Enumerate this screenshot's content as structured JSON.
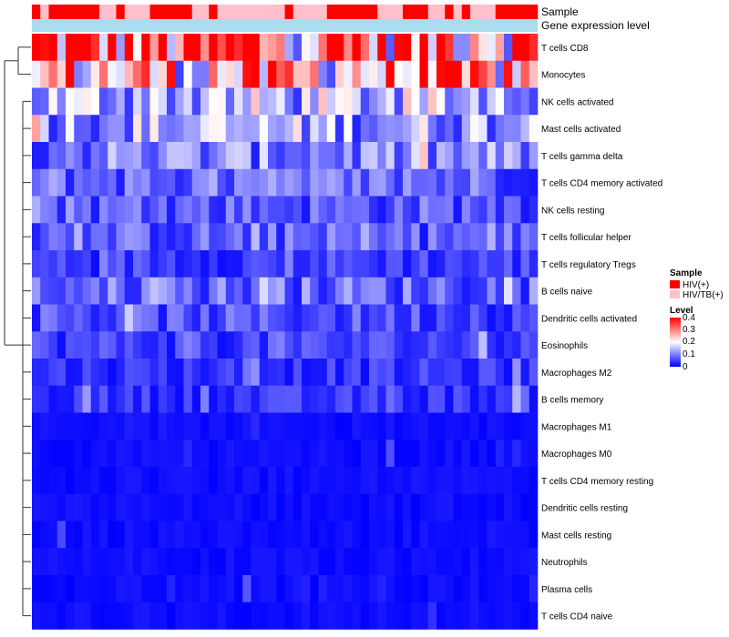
{
  "chart_data": {
    "type": "heatmap",
    "title": "",
    "annotation_tracks": [
      {
        "label": "Sample"
      },
      {
        "label": "Gene expression level"
      }
    ],
    "sample_groups": [
      "HIV(+)",
      "HIV/TB(+)"
    ],
    "sample_group_colors": {
      "HIV(+)": "#ff0000",
      "HIV/TB(+)": "#ffc0cb"
    },
    "sample_annotation": [
      0,
      1,
      0,
      0,
      0,
      0,
      0,
      0,
      1,
      1,
      0,
      1,
      1,
      1,
      0,
      0,
      0,
      0,
      0,
      1,
      1,
      0,
      1,
      1,
      1,
      1,
      1,
      1,
      1,
      1,
      0,
      1,
      1,
      1,
      1,
      0,
      0,
      0,
      0,
      0,
      0,
      1,
      1,
      1,
      0,
      0,
      0,
      1,
      1,
      0,
      1,
      0,
      1,
      1,
      1,
      0,
      0,
      0,
      0,
      0
    ],
    "expression_track_color": "#87ceeb",
    "rows": [
      "T cells CD8",
      "Monocytes",
      "NK cells activated",
      "Mast cells activated",
      "T cells gamma delta",
      "T cells CD4 memory activated",
      "NK cells resting",
      "T cells follicular helper",
      "T cells regulatory  Tregs",
      "B cells naive",
      "Dendritic cells activated",
      "Eosinophils",
      "Macrophages M2",
      "B cells memory",
      "Macrophages M1",
      "Macrophages M0",
      "T cells CD4 memory resting",
      "Dendritic cells resting",
      "Mast cells resting",
      "Neutrophils",
      "Plasma cells",
      "T cells CD4 naive"
    ],
    "row_base_levels": [
      0.32,
      0.24,
      0.14,
      0.13,
      0.1,
      0.08,
      0.07,
      0.07,
      0.05,
      0.08,
      0.06,
      0.05,
      0.04,
      0.04,
      0.02,
      0.02,
      0.01,
      0.01,
      0.005,
      0.005,
      0.02,
      0.01
    ],
    "n_samples": 60,
    "legend": {
      "sample_title": "Sample",
      "sample_entries": [
        "HIV(+)",
        "HIV/TB(+)"
      ],
      "level_title": "Level",
      "level_ticks": [
        "0.4",
        "0.3",
        "0.2",
        "0.1",
        "0"
      ]
    },
    "color_scale": {
      "min": 0,
      "mid": 0.2,
      "max": 0.4,
      "low": "#0000ff",
      "midColor": "#ffffff",
      "high": "#ff0000"
    }
  }
}
